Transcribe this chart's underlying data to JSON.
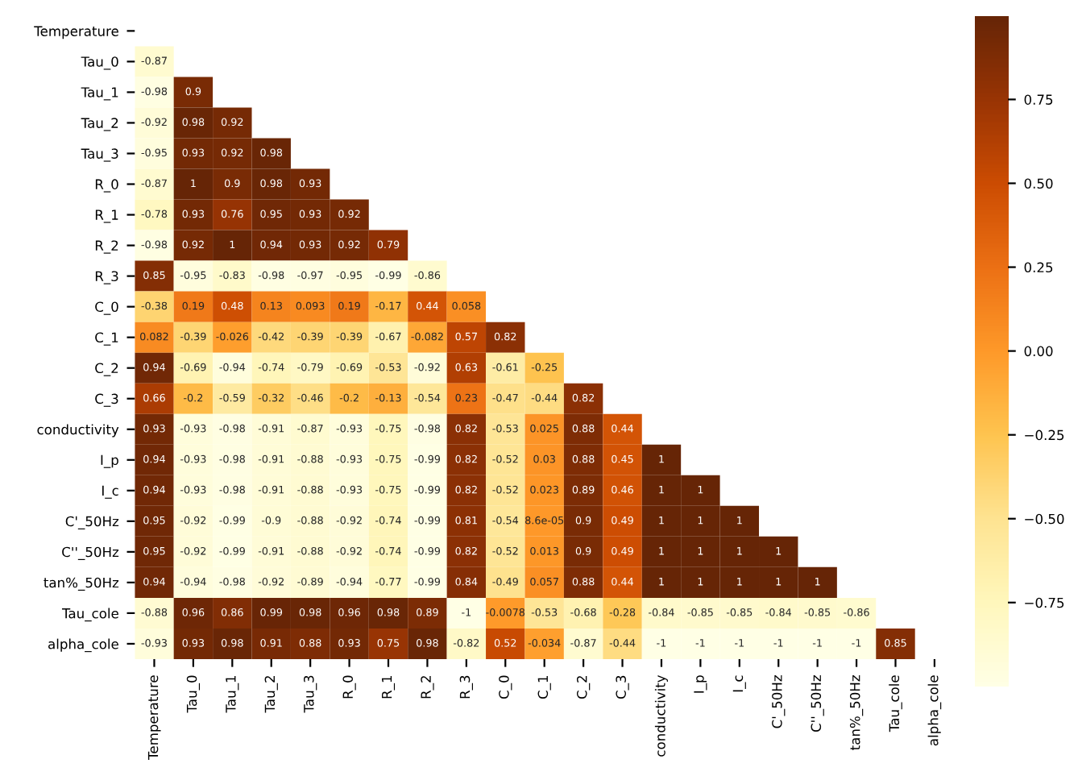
{
  "chart_data": {
    "type": "heatmap",
    "categories": [
      "Temperature",
      "Tau_0",
      "Tau_1",
      "Tau_2",
      "Tau_3",
      "R_0",
      "R_1",
      "R_2",
      "R_3",
      "C_0",
      "C_1",
      "C_2",
      "C_3",
      "conductivity",
      "I_p",
      "I_c",
      "C'_50Hz",
      "C''_50Hz",
      "tan%_50Hz",
      "Tau_cole",
      "alpha_cole"
    ],
    "y_categories": [
      "Temperature",
      "Tau_0",
      "Tau_1",
      "Tau_2",
      "Tau_3",
      "R_0",
      "R_1",
      "R_2",
      "R_3",
      "C_0",
      "C_1",
      "C_2",
      "C_3",
      "conductivity",
      "I_p",
      "I_c",
      "C'_50Hz",
      "C''_50Hz",
      "tan%_50Hz",
      "Tau_cole",
      "alpha_cole"
    ],
    "cells": [
      [
        null,
        null,
        null,
        null,
        null,
        null,
        null,
        null,
        null,
        null,
        null,
        null,
        null,
        null,
        null,
        null,
        null,
        null,
        null,
        null,
        null
      ],
      [
        -0.87,
        null,
        null,
        null,
        null,
        null,
        null,
        null,
        null,
        null,
        null,
        null,
        null,
        null,
        null,
        null,
        null,
        null,
        null,
        null,
        null
      ],
      [
        -0.98,
        0.9,
        null,
        null,
        null,
        null,
        null,
        null,
        null,
        null,
        null,
        null,
        null,
        null,
        null,
        null,
        null,
        null,
        null,
        null,
        null
      ],
      [
        -0.92,
        0.98,
        0.92,
        null,
        null,
        null,
        null,
        null,
        null,
        null,
        null,
        null,
        null,
        null,
        null,
        null,
        null,
        null,
        null,
        null,
        null
      ],
      [
        -0.95,
        0.93,
        0.92,
        0.98,
        null,
        null,
        null,
        null,
        null,
        null,
        null,
        null,
        null,
        null,
        null,
        null,
        null,
        null,
        null,
        null,
        null
      ],
      [
        -0.87,
        1,
        0.9,
        0.98,
        0.93,
        null,
        null,
        null,
        null,
        null,
        null,
        null,
        null,
        null,
        null,
        null,
        null,
        null,
        null,
        null,
        null
      ],
      [
        -0.78,
        0.93,
        0.76,
        0.95,
        0.93,
        0.92,
        null,
        null,
        null,
        null,
        null,
        null,
        null,
        null,
        null,
        null,
        null,
        null,
        null,
        null,
        null
      ],
      [
        -0.98,
        0.92,
        1,
        0.94,
        0.93,
        0.92,
        0.79,
        null,
        null,
        null,
        null,
        null,
        null,
        null,
        null,
        null,
        null,
        null,
        null,
        null,
        null
      ],
      [
        0.85,
        -0.95,
        -0.83,
        -0.98,
        -0.97,
        -0.95,
        -0.99,
        -0.86,
        null,
        null,
        null,
        null,
        null,
        null,
        null,
        null,
        null,
        null,
        null,
        null,
        null
      ],
      [
        -0.38,
        0.19,
        0.48,
        0.13,
        0.093,
        0.19,
        -0.17,
        0.44,
        0.058,
        null,
        null,
        null,
        null,
        null,
        null,
        null,
        null,
        null,
        null,
        null,
        null
      ],
      [
        0.082,
        -0.39,
        -0.026,
        -0.42,
        -0.39,
        -0.39,
        -0.67,
        -0.082,
        0.57,
        0.82,
        null,
        null,
        null,
        null,
        null,
        null,
        null,
        null,
        null,
        null,
        null
      ],
      [
        0.94,
        -0.69,
        -0.94,
        -0.74,
        -0.79,
        -0.69,
        -0.53,
        -0.92,
        0.63,
        -0.61,
        -0.25,
        null,
        null,
        null,
        null,
        null,
        null,
        null,
        null,
        null,
        null
      ],
      [
        0.66,
        -0.2,
        -0.59,
        -0.32,
        -0.46,
        -0.2,
        -0.13,
        -0.54,
        0.23,
        -0.47,
        -0.44,
        0.82,
        null,
        null,
        null,
        null,
        null,
        null,
        null,
        null,
        null
      ],
      [
        0.93,
        -0.93,
        -0.98,
        -0.91,
        -0.87,
        -0.93,
        -0.75,
        -0.98,
        0.82,
        -0.53,
        0.025,
        0.88,
        0.44,
        null,
        null,
        null,
        null,
        null,
        null,
        null,
        null
      ],
      [
        0.94,
        -0.93,
        -0.98,
        -0.91,
        -0.88,
        -0.93,
        -0.75,
        -0.99,
        0.82,
        -0.52,
        0.03,
        0.88,
        0.45,
        1,
        null,
        null,
        null,
        null,
        null,
        null,
        null
      ],
      [
        0.94,
        -0.93,
        -0.98,
        -0.91,
        -0.88,
        -0.93,
        -0.75,
        -0.99,
        0.82,
        -0.52,
        0.023,
        0.89,
        0.46,
        1,
        1,
        null,
        null,
        null,
        null,
        null,
        null
      ],
      [
        0.95,
        -0.92,
        -0.99,
        -0.9,
        -0.88,
        -0.92,
        -0.74,
        -0.99,
        0.81,
        -0.54,
        8.6e-05,
        0.9,
        0.49,
        1,
        1,
        1,
        null,
        null,
        null,
        null,
        null
      ],
      [
        0.95,
        -0.92,
        -0.99,
        -0.91,
        -0.88,
        -0.92,
        -0.74,
        -0.99,
        0.82,
        -0.52,
        0.013,
        0.9,
        0.49,
        1,
        1,
        1,
        1,
        null,
        null,
        null,
        null
      ],
      [
        0.94,
        -0.94,
        -0.98,
        -0.92,
        -0.89,
        -0.94,
        -0.77,
        -0.99,
        0.84,
        -0.49,
        0.057,
        0.88,
        0.44,
        1,
        1,
        1,
        1,
        1,
        null,
        null,
        null
      ],
      [
        -0.88,
        0.96,
        0.86,
        0.99,
        0.98,
        0.96,
        0.98,
        0.89,
        -1,
        -0.0078,
        -0.53,
        -0.68,
        -0.28,
        -0.84,
        -0.85,
        -0.85,
        -0.84,
        -0.85,
        -0.86,
        null,
        null
      ],
      [
        -0.93,
        0.93,
        0.98,
        0.91,
        0.88,
        0.93,
        0.75,
        0.98,
        -0.82,
        0.52,
        -0.034,
        -0.87,
        -0.44,
        -1,
        -1,
        -1,
        -1,
        -1,
        -1,
        0.85,
        null
      ]
    ],
    "data_labels": true,
    "clim": [
      -1,
      1
    ],
    "cticks": [
      {
        "value": 0.75,
        "label": "0.75"
      },
      {
        "value": 0.5,
        "label": "0.50"
      },
      {
        "value": 0.25,
        "label": "0.25"
      },
      {
        "value": 0,
        "label": "0.00"
      },
      {
        "value": -0.25,
        "label": "−0.25"
      },
      {
        "value": -0.5,
        "label": "−0.50"
      },
      {
        "value": -0.75,
        "label": "−0.75"
      }
    ]
  }
}
